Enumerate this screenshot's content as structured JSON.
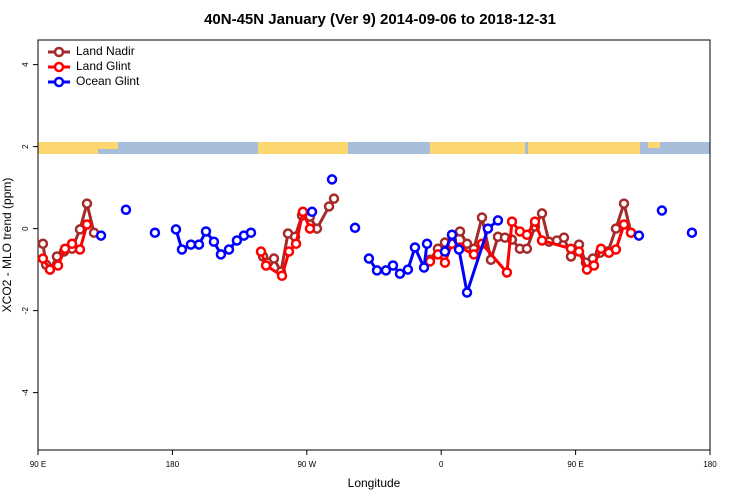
{
  "chart_data": {
    "type": "line",
    "title": "40N-45N January (Ver 9)   2014-09-06 to 2018-12-31",
    "x_label": "Longitude",
    "y_label": "XCO2 - MLO trend (ppm)",
    "xlim": [
      90,
      540
    ],
    "ylim": [
      -5.4,
      4.6
    ],
    "xticks": [
      {
        "value": 90,
        "label": "90 E"
      },
      180,
      {
        "value": 270,
        "label": "90 W"
      },
      {
        "value": 360,
        "label": "0"
      },
      {
        "value": 450,
        "label": "90 E"
      },
      {
        "value": 540,
        "label": "180"
      }
    ],
    "yticks": [
      -4,
      -2,
      0,
      2,
      4
    ],
    "legend": "top-left",
    "series": [
      {
        "name": "Land Nadir",
        "color": "#a52a2a",
        "x": [
          93.3,
          95.4,
          98.0,
          102.7,
          107.4,
          112.8,
          118.1,
          122.8,
          127.5,
          null,
          240.7,
          244.0,
          248.0,
          252.7,
          257.4,
          262.1,
          266.8,
          272.1,
          276.8,
          284.9,
          288.2,
          null,
          352.5,
          357.8,
          362.5,
          367.2,
          372.6,
          377.3,
          381.9,
          387.3,
          393.3,
          398.0,
          402.7,
          407.4,
          412.7,
          417.4,
          422.8,
          427.5,
          432.2,
          437.5,
          442.2,
          446.9,
          452.3,
          456.9,
          461.6,
          466.3,
          471.7,
          477.0,
          482.4,
          487.1
        ],
        "values": [
          -0.37,
          -0.88,
          -1.0,
          -0.68,
          -0.56,
          -0.49,
          -0.02,
          0.61,
          -0.1,
          null,
          -0.68,
          -0.83,
          -0.73,
          -1.05,
          -0.12,
          -0.2,
          0.32,
          0.29,
          0,
          0.54,
          0.73,
          null,
          -0.76,
          -0.49,
          -0.34,
          -0.29,
          -0.07,
          -0.37,
          -0.49,
          0.27,
          -0.76,
          -0.2,
          -0.22,
          -0.27,
          -0.49,
          -0.49,
          0.05,
          0.37,
          -0.32,
          -0.29,
          -0.22,
          -0.68,
          -0.39,
          -0.83,
          -0.73,
          -0.59,
          -0.56,
          0,
          0.61,
          -0.1
        ]
      },
      {
        "name": "Land Glint",
        "color": "#ff0000",
        "x": [
          93.3,
          98.0,
          103.4,
          108.1,
          112.8,
          118.1,
          122.8,
          null,
          239.3,
          242.7,
          253.4,
          258.1,
          262.8,
          267.4,
          272.1,
          null,
          352.5,
          357.8,
          362.5,
          367.2,
          372.6,
          381.9,
          387.3,
          404.0,
          407.4,
          412.7,
          417.4,
          422.8,
          427.5,
          446.9,
          452.3,
          457.6,
          462.3,
          467.0,
          472.3,
          477.0,
          482.4,
          487.1
        ],
        "values": [
          -0.73,
          -1.0,
          -0.9,
          -0.49,
          -0.37,
          -0.51,
          0.1,
          null,
          -0.56,
          -0.9,
          -1.15,
          -0.56,
          -0.37,
          0.41,
          0,
          null,
          -0.8,
          -0.63,
          -0.83,
          -0.37,
          -0.46,
          -0.63,
          -0.37,
          -1.07,
          0.17,
          -0.07,
          -0.15,
          0.17,
          -0.29,
          -0.49,
          -0.56,
          -1.0,
          -0.9,
          -0.49,
          -0.59,
          -0.51,
          0.1,
          -0.1
        ]
      },
      {
        "name": "Ocean Glint",
        "color": "#0000ff",
        "x": [
          132.2,
          null,
          148.9,
          null,
          168.3,
          null,
          182.4,
          186.4,
          192.4,
          197.8,
          202.5,
          207.8,
          212.5,
          217.9,
          223.2,
          227.9,
          232.6,
          null,
          273.5,
          null,
          286.9,
          null,
          302.3,
          null,
          311.6,
          317.0,
          323.0,
          327.7,
          332.4,
          337.7,
          342.4,
          348.5,
          350.5,
          null,
          362.5,
          367.2,
          371.9,
          377.3,
          391.3,
          398.0,
          null,
          492.4,
          null,
          507.8,
          null,
          527.9
        ],
        "values": [
          -0.17,
          null,
          0.46,
          null,
          -0.1,
          null,
          -0.02,
          -0.51,
          -0.39,
          -0.39,
          -0.07,
          -0.32,
          -0.63,
          -0.51,
          -0.29,
          -0.17,
          -0.1,
          null,
          0.41,
          null,
          1.2,
          null,
          0.02,
          null,
          -0.73,
          -1.02,
          -1.02,
          -0.9,
          -1.1,
          -1.0,
          -0.46,
          -0.95,
          -0.37,
          null,
          -0.56,
          -0.15,
          -0.51,
          -1.56,
          0,
          0.2,
          null,
          -0.17,
          null,
          0.44,
          null,
          -0.1
        ]
      }
    ]
  }
}
